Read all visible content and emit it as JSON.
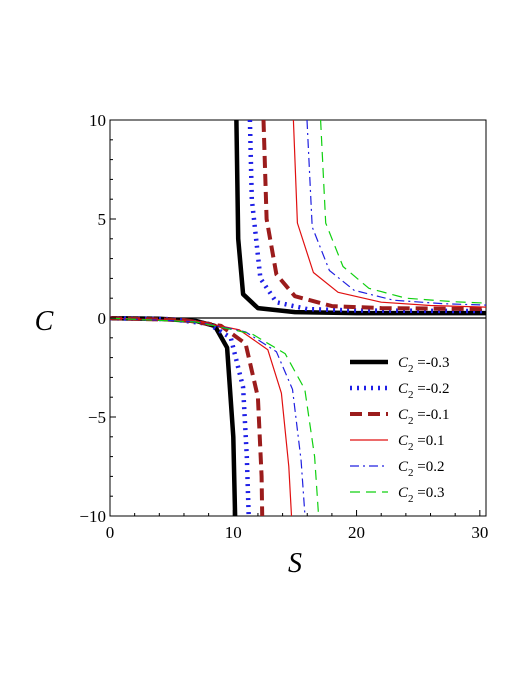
{
  "chart_data": {
    "type": "line",
    "xlabel": "S",
    "ylabel": "C",
    "xlim": [
      0,
      30.5
    ],
    "ylim": [
      -10,
      10
    ],
    "x_ticks": [
      0,
      10,
      20,
      30
    ],
    "y_ticks": [
      -10,
      -5,
      0,
      5,
      10
    ],
    "grid": false,
    "legend_position": "right-middle",
    "legend_param": "C",
    "legend_param_sub": "2",
    "series": [
      {
        "name": "-0.3",
        "color": "#000000",
        "dash": "solid",
        "width": 4.5,
        "singularity": 10.2,
        "asymptote": 0.25,
        "lower_branch": [
          [
            0,
            -0.01
          ],
          [
            4,
            -0.04
          ],
          [
            7,
            -0.15
          ],
          [
            8.5,
            -0.4
          ],
          [
            9.5,
            -1.5
          ],
          [
            10.0,
            -6
          ],
          [
            10.15,
            -10
          ]
        ],
        "upper_branch": [
          [
            10.25,
            10
          ],
          [
            10.4,
            4
          ],
          [
            10.8,
            1.2
          ],
          [
            12,
            0.5
          ],
          [
            15,
            0.3
          ],
          [
            20,
            0.25
          ],
          [
            30.5,
            0.25
          ]
        ]
      },
      {
        "name": "-0.2",
        "color": "#1f1fe6",
        "dash": "dotted",
        "width": 4.5,
        "singularity": 11.3,
        "asymptote": 0.35,
        "lower_branch": [
          [
            0,
            -0.01
          ],
          [
            5,
            -0.06
          ],
          [
            8,
            -0.3
          ],
          [
            9.8,
            -1.0
          ],
          [
            10.8,
            -3.5
          ],
          [
            11.1,
            -7
          ],
          [
            11.25,
            -10
          ]
        ],
        "upper_branch": [
          [
            11.35,
            10
          ],
          [
            11.5,
            6
          ],
          [
            12.2,
            2
          ],
          [
            13.5,
            0.8
          ],
          [
            16,
            0.45
          ],
          [
            20,
            0.38
          ],
          [
            30.5,
            0.35
          ]
        ]
      },
      {
        "name": "-0.1",
        "color": "#9b1c1c",
        "dash": "dashdash",
        "width": 4,
        "singularity": 12.4,
        "asymptote": 0.45,
        "lower_branch": [
          [
            0,
            -0.01
          ],
          [
            6,
            -0.1
          ],
          [
            9,
            -0.4
          ],
          [
            11,
            -1.3
          ],
          [
            12,
            -4
          ],
          [
            12.3,
            -8
          ],
          [
            12.35,
            -10
          ]
        ],
        "upper_branch": [
          [
            12.45,
            10
          ],
          [
            12.7,
            5
          ],
          [
            13.5,
            2.2
          ],
          [
            15,
            1.1
          ],
          [
            18,
            0.6
          ],
          [
            22,
            0.5
          ],
          [
            30.5,
            0.45
          ]
        ]
      },
      {
        "name": "0.1",
        "color": "#e01010",
        "dash": "solid",
        "width": 1.2,
        "singularity": 14.8,
        "asymptote": 0.55,
        "lower_branch": [
          [
            0,
            -0.01
          ],
          [
            7,
            -0.15
          ],
          [
            10.5,
            -0.6
          ],
          [
            12.8,
            -1.6
          ],
          [
            13.9,
            -3.8
          ],
          [
            14.5,
            -7.5
          ],
          [
            14.72,
            -10
          ]
        ],
        "upper_branch": [
          [
            14.88,
            10
          ],
          [
            15.2,
            4.8
          ],
          [
            16.5,
            2.3
          ],
          [
            18.5,
            1.3
          ],
          [
            22,
            0.8
          ],
          [
            26,
            0.63
          ],
          [
            30.5,
            0.55
          ]
        ]
      },
      {
        "name": "0.2",
        "color": "#2020e0",
        "dash": "dashdot",
        "width": 1.2,
        "singularity": 15.9,
        "asymptote": 0.65,
        "lower_branch": [
          [
            0,
            -0.01
          ],
          [
            7,
            -0.18
          ],
          [
            11,
            -0.7
          ],
          [
            13.5,
            -1.7
          ],
          [
            14.8,
            -3.6
          ],
          [
            15.5,
            -7.2
          ],
          [
            15.82,
            -10
          ]
        ],
        "upper_branch": [
          [
            15.98,
            10
          ],
          [
            16.4,
            4.6
          ],
          [
            17.8,
            2.4
          ],
          [
            19.8,
            1.4
          ],
          [
            23,
            0.9
          ],
          [
            27,
            0.72
          ],
          [
            30.5,
            0.65
          ]
        ]
      },
      {
        "name": "0.3",
        "color": "#10d010",
        "dash": "longdash",
        "width": 1.2,
        "singularity": 17.0,
        "asymptote": 0.75,
        "lower_branch": [
          [
            0,
            -0.01
          ],
          [
            7,
            -0.2
          ],
          [
            11.5,
            -0.8
          ],
          [
            14.2,
            -1.8
          ],
          [
            15.8,
            -3.6
          ],
          [
            16.6,
            -7
          ],
          [
            16.92,
            -10
          ]
        ],
        "upper_branch": [
          [
            17.08,
            10
          ],
          [
            17.5,
            4.8
          ],
          [
            18.9,
            2.6
          ],
          [
            21,
            1.5
          ],
          [
            24,
            1.0
          ],
          [
            28,
            0.82
          ],
          [
            30.5,
            0.75
          ]
        ]
      }
    ]
  }
}
